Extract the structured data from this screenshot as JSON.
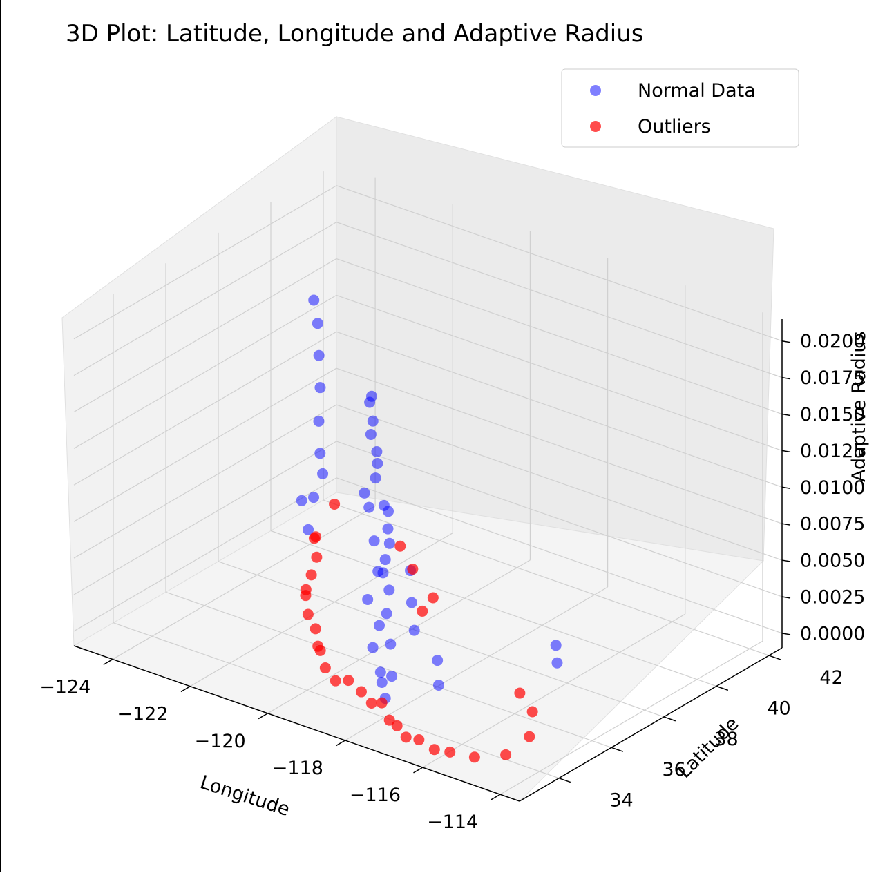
{
  "chart_data": {
    "type": "scatter",
    "projection": "3d",
    "title": "3D Plot: Latitude, Longitude and Adaptive Radius",
    "xlabel": "Longitude",
    "ylabel": "Latitude",
    "zlabel": "Adaptive Radius",
    "xlim": [
      -125,
      -113.5
    ],
    "ylim": [
      32.5,
      42.5
    ],
    "zlim": [
      -0.001,
      0.0215
    ],
    "x_ticks": [
      "−124",
      "−122",
      "−120",
      "−118",
      "−116",
      "−114"
    ],
    "x_tick_values": [
      -124,
      -122,
      -120,
      -118,
      -116,
      -114
    ],
    "y_ticks": [
      "34",
      "36",
      "38",
      "40",
      "42"
    ],
    "y_tick_values": [
      34,
      36,
      38,
      40,
      42
    ],
    "z_ticks": [
      "0.0000",
      "0.0025",
      "0.0050",
      "0.0075",
      "0.0100",
      "0.0125",
      "0.0150",
      "0.0175",
      "0.0200"
    ],
    "z_tick_values": [
      0,
      0.0025,
      0.005,
      0.0075,
      0.01,
      0.0125,
      0.015,
      0.0175,
      0.02
    ],
    "grid": true,
    "legend": {
      "placement": "top-right"
    },
    "series": [
      {
        "name": "Normal Data",
        "color": "#0000ff",
        "alpha": 0.5,
        "points": [
          [
            -122.4,
            37.8,
            0.0195
          ],
          [
            -122.3,
            37.8,
            0.018
          ],
          [
            -122.2,
            37.7,
            0.016
          ],
          [
            -122.1,
            37.6,
            0.014
          ],
          [
            -122.0,
            37.4,
            0.012
          ],
          [
            -121.9,
            37.3,
            0.01
          ],
          [
            -121.9,
            37.4,
            0.0085
          ],
          [
            -122.2,
            37.5,
            0.0065
          ],
          [
            -121.5,
            38.6,
            0.0125
          ],
          [
            -121.4,
            38.5,
            0.0105
          ],
          [
            -121.3,
            38.6,
            0.0085
          ],
          [
            -121.5,
            38.4,
            0.0065
          ],
          [
            -118.4,
            34.1,
            0.0205
          ],
          [
            -118.3,
            34.0,
            0.019
          ],
          [
            -118.2,
            34.0,
            0.017
          ],
          [
            -118.3,
            34.1,
            0.015
          ],
          [
            -118.4,
            34.0,
            0.013
          ],
          [
            -118.2,
            33.9,
            0.011
          ],
          [
            -118.1,
            33.9,
            0.009
          ],
          [
            -118.3,
            33.8,
            0.007
          ],
          [
            -118.0,
            33.8,
            0.0055
          ],
          [
            -118.1,
            33.7,
            0.004
          ],
          [
            -117.9,
            33.7,
            0.0025
          ],
          [
            -118.0,
            33.9,
            0.0015
          ],
          [
            -117.2,
            32.8,
            0.0155
          ],
          [
            -117.1,
            32.8,
            0.014
          ],
          [
            -117.1,
            32.7,
            0.012
          ],
          [
            -117.0,
            32.7,
            0.01
          ],
          [
            -117.2,
            32.9,
            0.008
          ],
          [
            -117.1,
            32.9,
            0.006
          ],
          [
            -117.0,
            32.8,
            0.004
          ],
          [
            -117.1,
            32.7,
            0.0025
          ],
          [
            -119.8,
            36.8,
            0.0085
          ],
          [
            -119.7,
            36.7,
            0.0065
          ],
          [
            -119.8,
            36.6,
            0.0045
          ],
          [
            -121.9,
            36.6,
            0.0075
          ],
          [
            -121.8,
            36.7,
            0.0055
          ],
          [
            -116.5,
            33.8,
            0.0045
          ],
          [
            -116.4,
            33.7,
            0.003
          ],
          [
            -117.4,
            34.1,
            0.0095
          ],
          [
            -117.3,
            34.0,
            0.0075
          ],
          [
            -117.3,
            34.1,
            0.0055
          ],
          [
            -115.0,
            36.1,
            0.0045
          ],
          [
            -114.9,
            36.0,
            0.0035
          ]
        ]
      },
      {
        "name": "Outliers",
        "color": "#ff0000",
        "alpha": 0.7,
        "points": [
          [
            -123.9,
            40.8,
            0.001
          ],
          [
            -123.5,
            39.5,
            0.0005
          ],
          [
            -123.2,
            39.0,
            0.0012
          ],
          [
            -122.8,
            38.5,
            0.0008
          ],
          [
            -122.6,
            38.0,
            0.0003
          ],
          [
            -122.4,
            37.5,
            0.0
          ],
          [
            -122.0,
            36.9,
            0.0006
          ],
          [
            -121.6,
            36.4,
            0.0002
          ],
          [
            -121.0,
            35.8,
            0.0004
          ],
          [
            -120.6,
            35.3,
            0.0001
          ],
          [
            -120.2,
            34.8,
            0.0007
          ],
          [
            -119.8,
            34.4,
            0.0003
          ],
          [
            -119.4,
            34.2,
            0.0
          ],
          [
            -119.0,
            34.1,
            0.0005
          ],
          [
            -118.6,
            34.0,
            0.0002
          ],
          [
            -118.2,
            33.8,
            0.0
          ],
          [
            -117.8,
            33.6,
            0.0006
          ],
          [
            -117.4,
            33.3,
            0.0001
          ],
          [
            -117.0,
            33.0,
            0.0004
          ],
          [
            -116.7,
            32.9,
            0.0
          ],
          [
            -116.3,
            32.8,
            0.0003
          ],
          [
            -115.9,
            32.8,
            0.0
          ],
          [
            -115.5,
            32.8,
            0.0002
          ],
          [
            -115.0,
            33.0,
            0.0001
          ],
          [
            -114.6,
            33.6,
            0.0
          ],
          [
            -114.6,
            34.5,
            0.0003
          ],
          [
            -115.2,
            35.5,
            0.0004
          ],
          [
            -116.0,
            36.2,
            0.0002
          ],
          [
            -119.6,
            37.8,
            0.0008
          ],
          [
            -120.0,
            38.8,
            0.0003
          ],
          [
            -121.0,
            39.5,
            0.0006
          ],
          [
            -122.0,
            40.5,
            0.0002
          ]
        ]
      }
    ]
  }
}
